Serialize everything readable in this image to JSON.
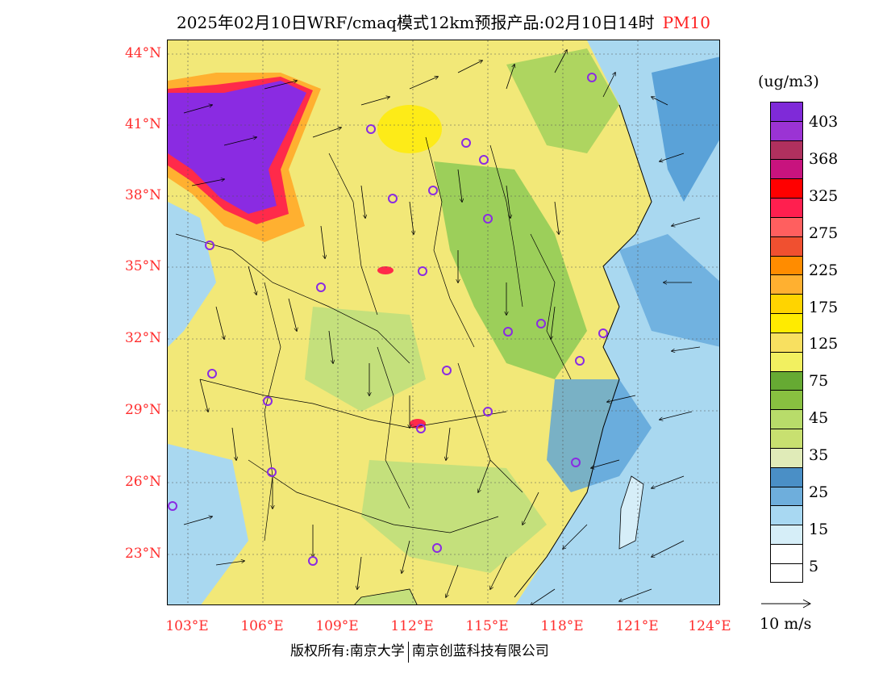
{
  "title": "2025年02月10日WRF/cmaq模式12km预报产品:02月10日14时",
  "pollutant": "PM10",
  "lat_labels": [
    "44°N",
    "41°N",
    "38°N",
    "35°N",
    "32°N",
    "29°N",
    "26°N",
    "23°N"
  ],
  "lon_labels": [
    "103°E",
    "106°E",
    "109°E",
    "112°E",
    "115°E",
    "118°E",
    "121°E",
    "124°E"
  ],
  "colorbar": {
    "unit": "(ug/m3)",
    "labels": [
      "403",
      "368",
      "325",
      "275",
      "225",
      "175",
      "125",
      "75",
      "45",
      "35",
      "25",
      "15",
      "5"
    ],
    "colors": [
      "#7f2ad8",
      "#9b33d4",
      "#b0305e",
      "#c8137e",
      "#ff0000",
      "#ff1f4f",
      "#ff5f5f",
      "#f05030",
      "#ff8c00",
      "#ffb030",
      "#ffd400",
      "#ffeb00",
      "#f8e060",
      "#f2f060",
      "#66aa33",
      "#88c040",
      "#b8dc6a",
      "#c8e070",
      "#e0ebb8",
      "#4a8fc6",
      "#6eaedc",
      "#a8d8f2",
      "#d6eef8",
      "#ffffff"
    ],
    "colors_note": "legend bins"
  },
  "wind": {
    "label": "10 m/s"
  },
  "footer": {
    "left": "版权所有:南京大学",
    "right": "南京创蓝科技有限公司"
  },
  "map_colors": {
    "heavy": "#8a2be2",
    "red": "#ff2a4a",
    "orange": "#ffb030",
    "yellow": "#f8f060",
    "light_yellow": "#f2e878",
    "green": "#9ccf5a",
    "light_green": "#c4e07c",
    "blue": "#5aa2d8",
    "light_blue": "#a9d8f0",
    "white": "#f0f8fc"
  },
  "city_marker_color": "#8a2be2"
}
